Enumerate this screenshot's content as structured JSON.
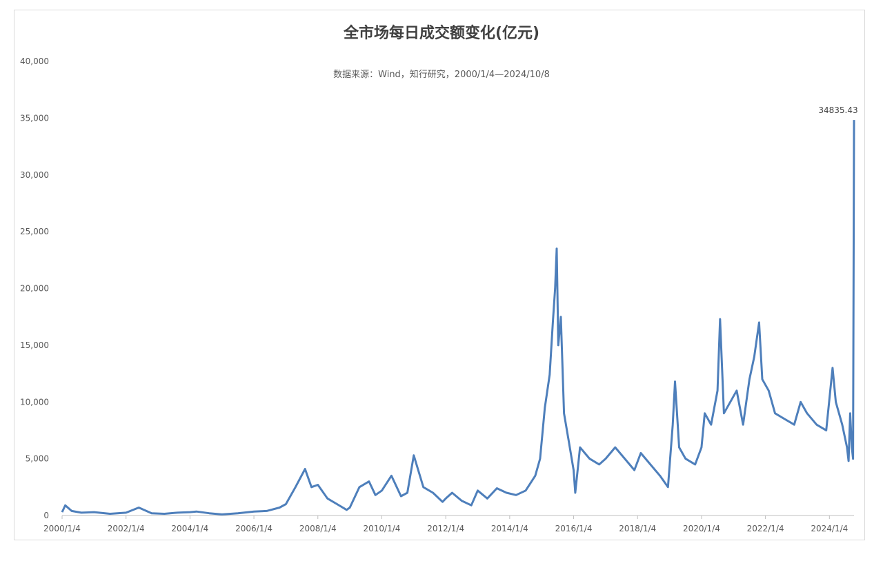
{
  "chart_data": {
    "type": "line",
    "title": "全市场每日成交额变化(亿元)",
    "subtitle": "数据来源：Wind，知行研究，2000/1/4—2024/10/8",
    "xlabel": "",
    "ylabel": "",
    "ylim": [
      0,
      40000
    ],
    "yticks": [
      "0",
      "5,000",
      "10,000",
      "15,000",
      "20,000",
      "25,000",
      "30,000",
      "35,000",
      "40,000"
    ],
    "xticks": [
      "2000/1/4",
      "2002/1/4",
      "2004/1/4",
      "2006/1/4",
      "2008/1/4",
      "2010/1/4",
      "2012/1/4",
      "2014/1/4",
      "2016/1/4",
      "2018/1/4",
      "2020/1/4",
      "2022/1/4",
      "2024/1/4"
    ],
    "grid": false,
    "legend": "none",
    "annotation": {
      "label": "34835.43",
      "x": "2024/10/8",
      "y": 34835.43
    },
    "series": [
      {
        "color": "#4e7fbb",
        "x": [
          2000.0,
          2000.1,
          2000.3,
          2000.6,
          2001.0,
          2001.5,
          2002.0,
          2002.4,
          2002.8,
          2003.2,
          2003.6,
          2004.0,
          2004.2,
          2004.6,
          2005.0,
          2005.5,
          2006.0,
          2006.4,
          2006.8,
          2007.0,
          2007.3,
          2007.6,
          2007.8,
          2008.0,
          2008.3,
          2008.6,
          2008.9,
          2009.0,
          2009.3,
          2009.6,
          2009.8,
          2010.0,
          2010.3,
          2010.6,
          2010.8,
          2011.0,
          2011.3,
          2011.6,
          2011.9,
          2012.0,
          2012.2,
          2012.5,
          2012.8,
          2013.0,
          2013.3,
          2013.6,
          2013.9,
          2014.2,
          2014.5,
          2014.8,
          2014.95,
          2015.1,
          2015.25,
          2015.35,
          2015.42,
          2015.47,
          2015.52,
          2015.6,
          2015.7,
          2015.85,
          2016.0,
          2016.05,
          2016.2,
          2016.5,
          2016.8,
          2017.0,
          2017.3,
          2017.6,
          2017.9,
          2018.1,
          2018.4,
          2018.7,
          2018.95,
          2019.1,
          2019.17,
          2019.3,
          2019.5,
          2019.8,
          2020.0,
          2020.1,
          2020.3,
          2020.5,
          2020.58,
          2020.7,
          2020.9,
          2021.1,
          2021.3,
          2021.5,
          2021.65,
          2021.8,
          2021.9,
          2022.1,
          2022.3,
          2022.6,
          2022.9,
          2023.1,
          2023.3,
          2023.6,
          2023.9,
          2024.1,
          2024.2,
          2024.4,
          2024.55,
          2024.6,
          2024.65,
          2024.7,
          2024.74,
          2024.77
        ],
        "y": [
          300,
          900,
          400,
          250,
          300,
          150,
          250,
          700,
          200,
          150,
          250,
          300,
          350,
          200,
          100,
          200,
          350,
          400,
          700,
          1000,
          2500,
          4100,
          2500,
          2700,
          1500,
          1000,
          500,
          700,
          2500,
          3000,
          1800,
          2200,
          3500,
          1700,
          2000,
          5300,
          2500,
          2000,
          1200,
          1500,
          2000,
          1300,
          900,
          2200,
          1500,
          2400,
          2000,
          1800,
          2200,
          3500,
          5000,
          9500,
          12400,
          17000,
          20000,
          23500,
          15000,
          17500,
          9000,
          6500,
          4000,
          2000,
          6000,
          5000,
          4500,
          5000,
          6000,
          5000,
          4000,
          5500,
          4500,
          3500,
          2500,
          8000,
          11800,
          6000,
          5000,
          4500,
          6000,
          9000,
          8000,
          11000,
          17300,
          9000,
          10000,
          11000,
          8000,
          12000,
          14000,
          17000,
          12000,
          11000,
          9000,
          8500,
          8000,
          10000,
          9000,
          8000,
          7500,
          13000,
          10000,
          8000,
          6000,
          4800,
          9000,
          6000,
          5000,
          34835.43
        ]
      }
    ]
  }
}
